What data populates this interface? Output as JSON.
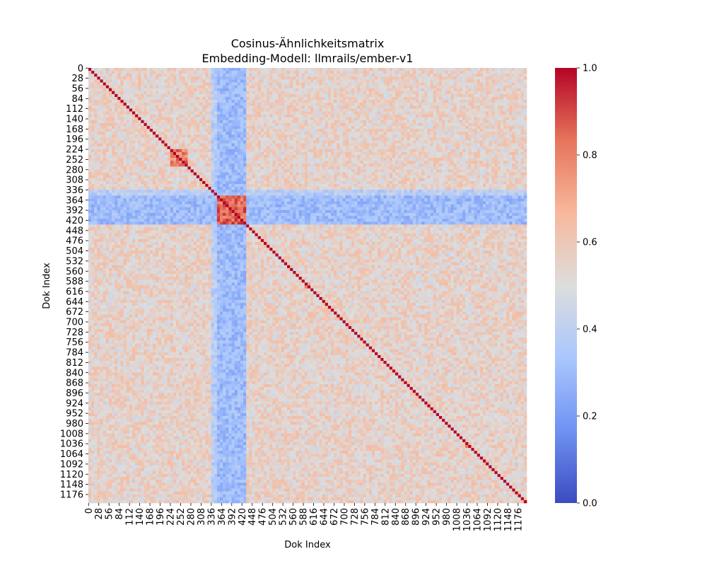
{
  "chart_data": {
    "type": "heatmap",
    "title": "Cosinus-Ähnlichkeitsmatrix",
    "subtitle": "Embedding-Modell: llmrails/ember-v1",
    "xlabel": "Dok Index",
    "ylabel": "Dok Index",
    "n_docs": 1200,
    "x_ticks": [
      0,
      28,
      56,
      84,
      112,
      140,
      168,
      196,
      224,
      252,
      280,
      308,
      336,
      364,
      392,
      420,
      448,
      476,
      504,
      532,
      560,
      588,
      616,
      644,
      672,
      700,
      728,
      756,
      784,
      812,
      840,
      868,
      896,
      924,
      952,
      980,
      1008,
      1036,
      1064,
      1092,
      1120,
      1148,
      1176
    ],
    "y_ticks": [
      0,
      28,
      56,
      84,
      112,
      140,
      168,
      196,
      224,
      252,
      280,
      308,
      336,
      364,
      392,
      420,
      448,
      476,
      504,
      532,
      560,
      588,
      616,
      644,
      672,
      700,
      728,
      756,
      784,
      812,
      840,
      868,
      896,
      924,
      952,
      980,
      1008,
      1036,
      1064,
      1092,
      1120,
      1148,
      1176
    ],
    "value_range": [
      0.0,
      1.0
    ],
    "colormap": "coolwarm",
    "colormap_stops": [
      "#3b4cc0",
      "#6f92f3",
      "#aac7fd",
      "#dddddd",
      "#f7b89c",
      "#e7745b",
      "#b40426"
    ],
    "colorbar_ticks": [
      "0.0",
      "0.2",
      "0.4",
      "0.6",
      "0.8",
      "1.0"
    ],
    "diagonal_value": 1.0,
    "background_similarity": 0.55,
    "high_similarity_blocks": [
      {
        "start": 222,
        "end": 272,
        "value": 0.8
      },
      {
        "start": 350,
        "end": 435,
        "value": 0.85
      },
      {
        "start": 595,
        "end": 612,
        "value": 0.8
      },
      {
        "start": 1030,
        "end": 1048,
        "value": 0.75
      },
      {
        "start": 1056,
        "end": 1068,
        "value": 0.8
      }
    ],
    "low_similarity_bands": [
      {
        "start": 335,
        "end": 350,
        "value": 0.38
      },
      {
        "start": 350,
        "end": 435,
        "value": 0.3
      }
    ]
  }
}
